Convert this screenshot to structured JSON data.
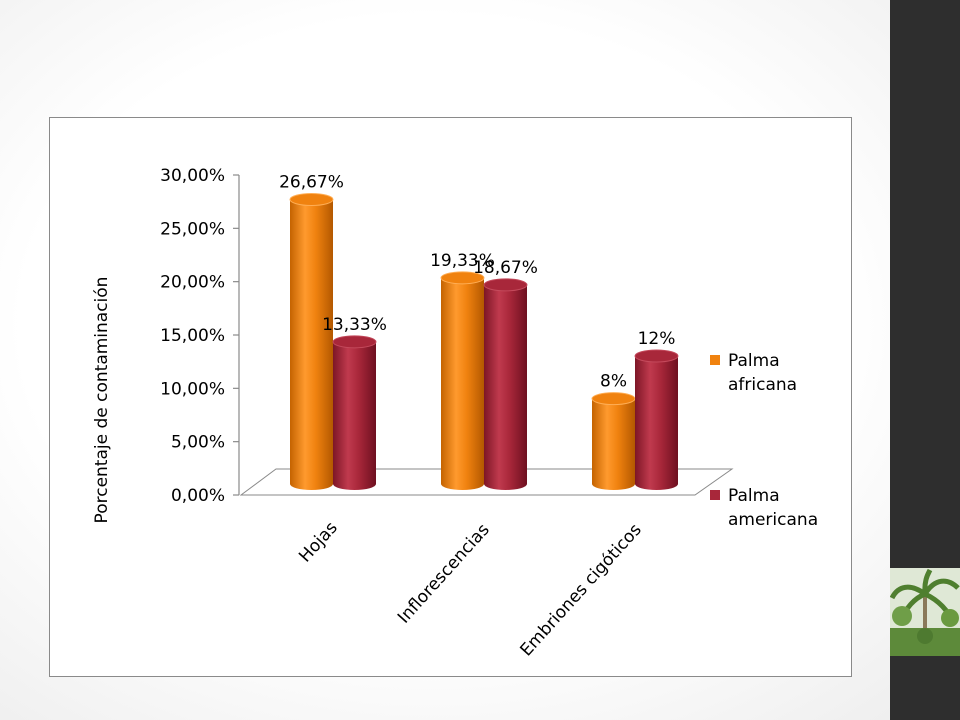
{
  "chart_data": {
    "type": "bar",
    "categories": [
      "Hojas",
      "Inflorescencias",
      "Embriones cigóticos"
    ],
    "series": [
      {
        "name": "Palma africana",
        "values": [
          26.67,
          19.33,
          8.0
        ],
        "labels": [
          "26,67%",
          "19,33%",
          "8%"
        ],
        "color": "#f0820f"
      },
      {
        "name": "Palma americana",
        "values": [
          13.33,
          18.67,
          12.0
        ],
        "labels": [
          "13,33%",
          "18,67%",
          "12%"
        ],
        "color": "#a8273a"
      }
    ],
    "ylabel": "Porcentaje de contaminación",
    "xlabel": "",
    "ylim": [
      0,
      30
    ],
    "yticks": [
      0,
      5,
      10,
      15,
      20,
      25,
      30
    ],
    "ytick_labels": [
      "0,00%",
      "5,00%",
      "10,00%",
      "15,00%",
      "20,00%",
      "25,00%",
      "30,00%"
    ],
    "grid": false,
    "legend_position": "right",
    "style": "3d-cylinder"
  },
  "legend": {
    "items": [
      {
        "line1": "Palma",
        "line2": "africana",
        "color": "#f0820f"
      },
      {
        "line1": "Palma",
        "line2": "americana",
        "color": "#a8273a"
      }
    ]
  }
}
